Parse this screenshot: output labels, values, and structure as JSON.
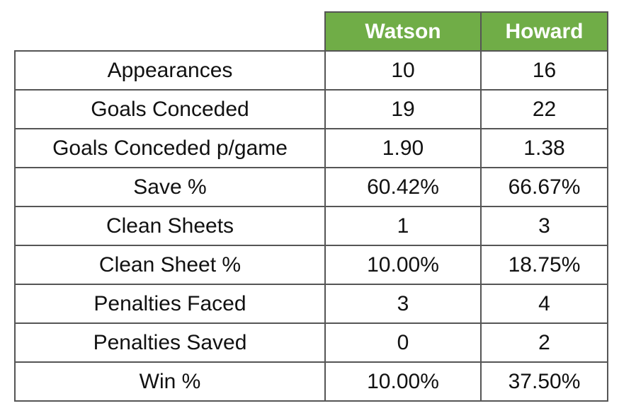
{
  "table": {
    "columns": [
      "Watson",
      "Howard"
    ],
    "rows": [
      [
        "Appearances",
        "10",
        "16"
      ],
      [
        "Goals Conceded",
        "19",
        "22"
      ],
      [
        "Goals Conceded p/game",
        "1.90",
        "1.38"
      ],
      [
        "Save %",
        "60.42%",
        "66.67%"
      ],
      [
        "Clean Sheets",
        "1",
        "3"
      ],
      [
        "Clean Sheet %",
        "10.00%",
        "18.75%"
      ],
      [
        "Penalties Faced",
        "3",
        "4"
      ],
      [
        "Penalties Saved",
        "0",
        "2"
      ],
      [
        "Win %",
        "10.00%",
        "37.50%"
      ]
    ]
  }
}
